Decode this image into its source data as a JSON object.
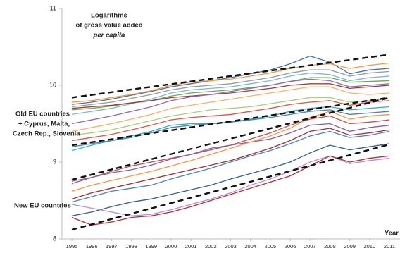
{
  "chart_data": {
    "type": "line",
    "annotations": {
      "note_line1": "Logarithms",
      "note_line2": "of gross value added",
      "note_line3": "per capita",
      "old_eu_line1": "Old EU countries",
      "old_eu_line2": "+ Cyprus, Malta,",
      "old_eu_line3": "Czech Rep., Slovenia",
      "new_eu": "New EU countries"
    },
    "x_label": "Year",
    "x": [
      1995,
      1996,
      1997,
      1998,
      1999,
      2000,
      2001,
      2002,
      2003,
      2004,
      2005,
      2006,
      2007,
      2008,
      2009,
      2010,
      2011
    ],
    "xlim": [
      1995,
      2011
    ],
    "ylim": [
      8,
      11
    ],
    "yticks": [
      8,
      9,
      10,
      11
    ],
    "series": [
      {
        "color": "#3f6fb5",
        "values": [
          9.75,
          9.78,
          9.82,
          9.87,
          9.92,
          9.98,
          10.02,
          10.06,
          10.1,
          10.15,
          10.2,
          10.28,
          10.38,
          10.3,
          10.15,
          10.2,
          10.22
        ]
      },
      {
        "color": "#f29a3a",
        "values": [
          9.78,
          9.8,
          9.84,
          9.88,
          9.93,
          10.0,
          10.04,
          10.06,
          10.08,
          10.12,
          10.16,
          10.22,
          10.26,
          10.28,
          10.22,
          10.26,
          10.29
        ]
      },
      {
        "color": "#9a9a9a",
        "values": [
          9.72,
          9.75,
          9.78,
          9.83,
          9.88,
          9.94,
          9.98,
          10.0,
          10.02,
          10.06,
          10.1,
          10.16,
          10.2,
          10.2,
          10.12,
          10.16,
          10.18
        ]
      },
      {
        "color": "#7fb2e0",
        "values": [
          9.62,
          9.66,
          9.7,
          9.76,
          9.82,
          9.9,
          9.94,
          9.96,
          9.98,
          10.02,
          10.06,
          10.12,
          10.16,
          10.14,
          10.06,
          10.1,
          10.12
        ]
      },
      {
        "color": "#6aa84f",
        "values": [
          9.68,
          9.7,
          9.73,
          9.77,
          9.8,
          9.86,
          9.9,
          9.92,
          9.94,
          9.97,
          10.0,
          10.05,
          10.1,
          10.1,
          10.04,
          10.05,
          10.06
        ]
      },
      {
        "color": "#a33a3a",
        "values": [
          9.7,
          9.72,
          9.74,
          9.77,
          9.8,
          9.84,
          9.86,
          9.88,
          9.9,
          9.93,
          9.96,
          10.0,
          10.02,
          10.02,
          9.96,
          9.98,
          10.0
        ]
      },
      {
        "color": "#8e6bb8",
        "values": [
          9.5,
          9.55,
          9.6,
          9.66,
          9.72,
          9.8,
          9.85,
          9.88,
          9.92,
          9.96,
          10.0,
          10.05,
          10.08,
          10.06,
          9.98,
          10.0,
          10.02
        ]
      },
      {
        "color": "#f5b26b",
        "values": [
          9.4,
          9.45,
          9.5,
          9.56,
          9.62,
          9.7,
          9.74,
          9.78,
          9.82,
          9.86,
          9.9,
          9.94,
          9.98,
          9.98,
          9.9,
          9.88,
          9.9
        ]
      },
      {
        "color": "#a9cf7a",
        "values": [
          9.35,
          9.38,
          9.42,
          9.48,
          9.54,
          9.6,
          9.64,
          9.68,
          9.7,
          9.72,
          9.76,
          9.8,
          9.84,
          9.84,
          9.78,
          9.8,
          9.82
        ]
      },
      {
        "color": "#d9534f",
        "values": [
          9.28,
          9.32,
          9.36,
          9.42,
          9.48,
          9.55,
          9.58,
          9.6,
          9.62,
          9.66,
          9.7,
          9.75,
          9.78,
          9.8,
          9.74,
          9.78,
          9.8
        ]
      },
      {
        "color": "#3bb0b0",
        "values": [
          9.15,
          9.22,
          9.28,
          9.34,
          9.4,
          9.48,
          9.5,
          9.5,
          9.52,
          9.56,
          9.6,
          9.66,
          9.7,
          9.72,
          9.68,
          9.7,
          9.72
        ]
      },
      {
        "color": "#4a7fc0",
        "values": [
          9.2,
          9.24,
          9.28,
          9.32,
          9.38,
          9.45,
          9.48,
          9.5,
          9.52,
          9.55,
          9.58,
          9.62,
          9.66,
          9.68,
          9.62,
          9.64,
          9.66
        ]
      },
      {
        "color": "#c0504d",
        "values": [
          8.72,
          8.8,
          8.88,
          8.95,
          9.0,
          9.05,
          9.1,
          9.16,
          9.22,
          9.3,
          9.38,
          9.48,
          9.56,
          9.6,
          9.5,
          9.52,
          9.55
        ]
      },
      {
        "color": "#8064a2",
        "values": [
          8.75,
          8.8,
          8.86,
          8.9,
          8.96,
          9.04,
          9.1,
          9.18,
          9.22,
          9.26,
          9.3,
          9.38,
          9.48,
          9.5,
          9.4,
          9.45,
          9.48
        ]
      },
      {
        "color": "#f79646",
        "values": [
          8.62,
          8.7,
          8.76,
          8.82,
          8.88,
          8.95,
          9.02,
          9.1,
          9.18,
          9.26,
          9.34,
          9.44,
          9.58,
          9.66,
          9.56,
          9.6,
          9.62
        ]
      },
      {
        "color": "#4f81bd",
        "values": [
          8.48,
          8.55,
          8.62,
          8.66,
          8.7,
          8.78,
          8.85,
          8.92,
          9.0,
          9.08,
          9.15,
          9.24,
          9.34,
          9.4,
          9.32,
          9.35,
          9.4
        ]
      },
      {
        "color": "#943634",
        "values": [
          8.52,
          8.6,
          8.66,
          8.72,
          8.78,
          8.84,
          8.9,
          8.96,
          9.02,
          9.1,
          9.18,
          9.28,
          9.4,
          9.44,
          9.35,
          9.38,
          9.42
        ]
      },
      {
        "color": "#366092",
        "values": [
          8.3,
          8.35,
          8.42,
          8.48,
          8.52,
          8.58,
          8.64,
          8.7,
          8.78,
          8.85,
          8.92,
          9.0,
          9.12,
          9.22,
          9.16,
          9.2,
          9.24
        ]
      },
      {
        "color": "#b38fd6",
        "values": [
          8.45,
          8.4,
          8.35,
          8.3,
          8.32,
          8.38,
          8.45,
          8.52,
          8.6,
          8.7,
          8.78,
          8.88,
          9.0,
          9.08,
          8.98,
          9.02,
          9.05
        ]
      },
      {
        "color": "#b03030",
        "values": [
          8.28,
          8.18,
          8.22,
          8.28,
          8.3,
          8.35,
          8.42,
          8.5,
          8.58,
          8.66,
          8.74,
          8.82,
          8.95,
          9.08,
          9.0,
          9.05,
          9.08
        ]
      }
    ],
    "trend_lines": [
      {
        "x": [
          1995,
          2011
        ],
        "values": [
          9.84,
          10.4
        ]
      },
      {
        "x": [
          1995,
          2011
        ],
        "values": [
          9.22,
          9.84
        ]
      },
      {
        "x": [
          1995,
          2011
        ],
        "values": [
          8.77,
          9.84
        ]
      },
      {
        "x": [
          1995,
          2011
        ],
        "values": [
          8.12,
          9.23
        ]
      }
    ]
  }
}
